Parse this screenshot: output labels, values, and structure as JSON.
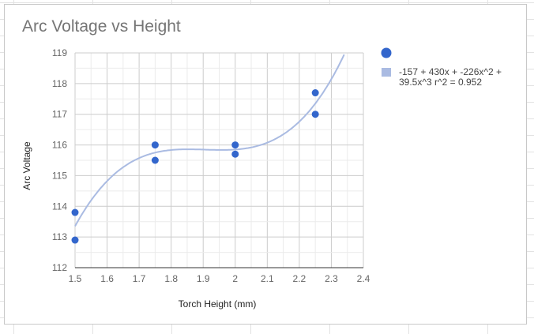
{
  "chart_data": {
    "type": "scatter",
    "title": "Arc Voltage vs Height",
    "xlabel": "Torch Height (mm)",
    "ylabel": "Arc Voltage",
    "xlim": [
      1.5,
      2.4
    ],
    "ylim": [
      112,
      119
    ],
    "x_ticks": [
      "1.5",
      "1.6",
      "1.7",
      "1.8",
      "1.9",
      "2",
      "2.1",
      "2.2",
      "2.3",
      "2.4"
    ],
    "y_ticks": [
      "112",
      "113",
      "114",
      "115",
      "116",
      "117",
      "118",
      "119"
    ],
    "grid": true,
    "legend_position": "right",
    "series": [
      {
        "color": "#3366cc",
        "points": [
          {
            "x": 1.5,
            "y": 113.8
          },
          {
            "x": 1.5,
            "y": 112.9
          },
          {
            "x": 1.75,
            "y": 116.0
          },
          {
            "x": 1.75,
            "y": 115.5
          },
          {
            "x": 2.0,
            "y": 116.0
          },
          {
            "x": 2.0,
            "y": 115.7
          },
          {
            "x": 2.25,
            "y": 117.7
          },
          {
            "x": 2.25,
            "y": 117.0
          }
        ]
      }
    ],
    "trendline": {
      "type": "polynomial",
      "color": "#aabbe2",
      "legend_line1": "-157 + 430x + -226x^2 +",
      "legend_line2": "39.5x^3 r^2 = 0.952"
    }
  }
}
